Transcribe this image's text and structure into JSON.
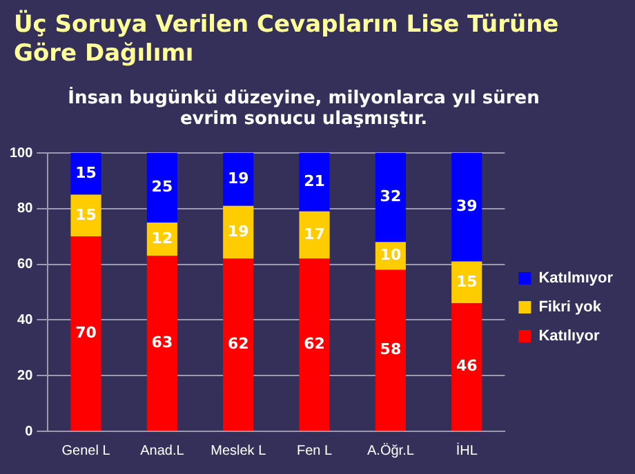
{
  "chart_data": {
    "type": "bar",
    "title": "Üç Soruya Verilen Cevapların Lise Türüne Göre Dağılımı",
    "subtitle": "İnsan bugünkü düzeyine, milyonlarca yıl süren evrim sonucu ulaşmıştır.",
    "categories": [
      "Genel L",
      "Anad.L",
      "Meslek L",
      "Fen L",
      "A.Öğr.L",
      "İHL"
    ],
    "stacked": true,
    "series": [
      {
        "name": "Katılıyor",
        "color": "#ff0000",
        "values": [
          70,
          63,
          62,
          62,
          58,
          46
        ]
      },
      {
        "name": "Fikri yok",
        "color": "#ffcc00",
        "values": [
          15,
          12,
          19,
          17,
          10,
          15
        ]
      },
      {
        "name": "Katılmıyor",
        "color": "#0000ff",
        "values": [
          15,
          25,
          19,
          21,
          32,
          39
        ]
      }
    ],
    "ylim": [
      0,
      100
    ],
    "yticks": [
      0,
      20,
      40,
      60,
      80,
      100
    ],
    "grid": "y",
    "legend": "right",
    "data_labels": true
  }
}
